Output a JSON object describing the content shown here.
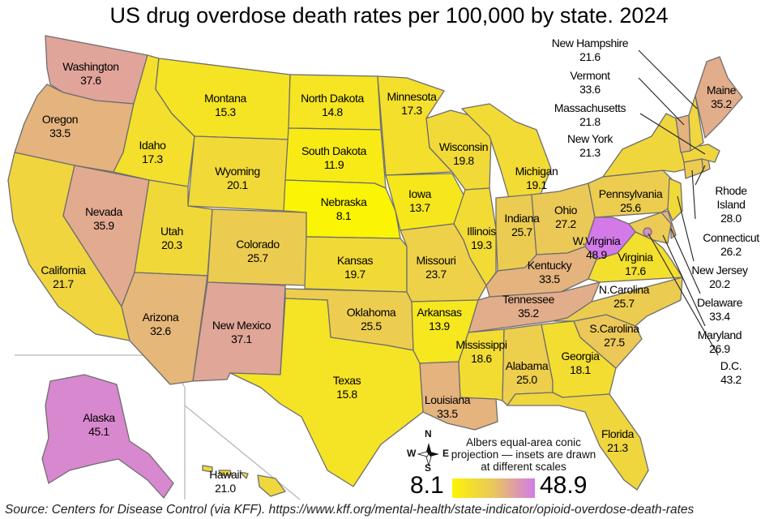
{
  "title": "US drug overdose death rates per 100,000 by state. 2024",
  "source": "Source: Centers for Disease Control (via KFF). https://www.kff.org/mental-health/state-indicator/opioid-overdose-death-rates",
  "projection_note": "Albers equal-area conic projection — insets are drawn at different scales",
  "compass": {
    "n": "N",
    "s": "S",
    "e": "E",
    "w": "W"
  },
  "legend": {
    "min": "8.1",
    "max": "48.9",
    "color_low": "#fbf405",
    "color_mid": "#eac65c",
    "color_high": "#d37ae8"
  },
  "states": [
    {
      "id": "WA",
      "name": "Washington",
      "value": "37.6"
    },
    {
      "id": "OR",
      "name": "Oregon",
      "value": "33.5"
    },
    {
      "id": "CA",
      "name": "California",
      "value": "21.7"
    },
    {
      "id": "NV",
      "name": "Nevada",
      "value": "35.9"
    },
    {
      "id": "ID",
      "name": "Idaho",
      "value": "17.3"
    },
    {
      "id": "MT",
      "name": "Montana",
      "value": "15.3"
    },
    {
      "id": "WY",
      "name": "Wyoming",
      "value": "20.1"
    },
    {
      "id": "UT",
      "name": "Utah",
      "value": "20.3"
    },
    {
      "id": "AZ",
      "name": "Arizona",
      "value": "32.6"
    },
    {
      "id": "CO",
      "name": "Colorado",
      "value": "25.7"
    },
    {
      "id": "NM",
      "name": "New Mexico",
      "value": "37.1"
    },
    {
      "id": "ND",
      "name": "North Dakota",
      "value": "14.8"
    },
    {
      "id": "SD",
      "name": "South Dakota",
      "value": "11.9"
    },
    {
      "id": "NE",
      "name": "Nebraska",
      "value": "8.1"
    },
    {
      "id": "KS",
      "name": "Kansas",
      "value": "19.7"
    },
    {
      "id": "OK",
      "name": "Oklahoma",
      "value": "25.5"
    },
    {
      "id": "TX",
      "name": "Texas",
      "value": "15.8"
    },
    {
      "id": "MN",
      "name": "Minnesota",
      "value": "17.3"
    },
    {
      "id": "IA",
      "name": "Iowa",
      "value": "13.7"
    },
    {
      "id": "MO",
      "name": "Missouri",
      "value": "23.7"
    },
    {
      "id": "AR",
      "name": "Arkansas",
      "value": "13.9"
    },
    {
      "id": "LA",
      "name": "Louisiana",
      "value": "33.5"
    },
    {
      "id": "WI",
      "name": "Wisconsin",
      "value": "19.8"
    },
    {
      "id": "IL",
      "name": "Illinois",
      "value": "19.3"
    },
    {
      "id": "MI",
      "name": "Michigan",
      "value": "19.1"
    },
    {
      "id": "IN",
      "name": "Indiana",
      "value": "25.7"
    },
    {
      "id": "OH",
      "name": "Ohio",
      "value": "27.2"
    },
    {
      "id": "KY",
      "name": "Kentucky",
      "value": "33.5"
    },
    {
      "id": "TN",
      "name": "Tennessee",
      "value": "35.2"
    },
    {
      "id": "MS",
      "name": "Mississippi",
      "value": "18.6"
    },
    {
      "id": "AL",
      "name": "Alabama",
      "value": "25.0"
    },
    {
      "id": "GA",
      "name": "Georgia",
      "value": "18.1"
    },
    {
      "id": "FL",
      "name": "Florida",
      "value": "21.3"
    },
    {
      "id": "SC",
      "name": "S.Carolina",
      "value": "27.5"
    },
    {
      "id": "NC",
      "name": "N.Carolina",
      "value": "25.7"
    },
    {
      "id": "VA",
      "name": "Virginia",
      "value": "17.6"
    },
    {
      "id": "WV",
      "name": "W.Virginia",
      "value": "48.9"
    },
    {
      "id": "PA",
      "name": "Pennsylvania",
      "value": "25.6"
    },
    {
      "id": "NY",
      "name": "New York",
      "value": "21.3"
    },
    {
      "id": "ME",
      "name": "Maine",
      "value": "35.2"
    },
    {
      "id": "AK",
      "name": "Alaska",
      "value": "45.1"
    },
    {
      "id": "HI",
      "name": "Hawaii",
      "value": "21.0"
    }
  ],
  "external_states": [
    {
      "id": "NH",
      "name": "New Hampshire",
      "value": "21.6"
    },
    {
      "id": "VT",
      "name": "Vermont",
      "value": "33.6"
    },
    {
      "id": "MA",
      "name": "Massachusetts",
      "value": "21.8"
    },
    {
      "id": "RI",
      "name": "Rhode Island",
      "name_line1": "Rhode",
      "name_line2": "Island",
      "value": "28.0"
    },
    {
      "id": "CT",
      "name": "Connecticut",
      "value": "26.2"
    },
    {
      "id": "NJ",
      "name": "New Jersey",
      "value": "20.2"
    },
    {
      "id": "DE",
      "name": "Delaware",
      "value": "33.4"
    },
    {
      "id": "MD",
      "name": "Maryland",
      "value": "26.9"
    },
    {
      "id": "DC",
      "name": "D.C.",
      "value": "43.2"
    }
  ]
}
